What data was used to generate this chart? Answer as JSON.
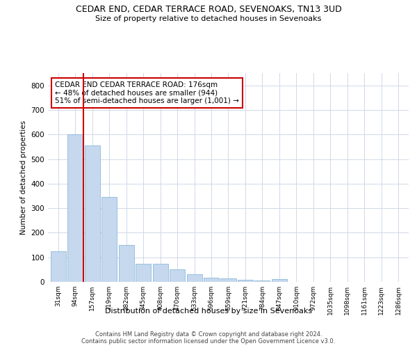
{
  "title": "CEDAR END, CEDAR TERRACE ROAD, SEVENOAKS, TN13 3UD",
  "subtitle": "Size of property relative to detached houses in Sevenoaks",
  "xlabel": "Distribution of detached houses by size in Sevenoaks",
  "ylabel": "Number of detached properties",
  "categories": [
    "31sqm",
    "94sqm",
    "157sqm",
    "219sqm",
    "282sqm",
    "345sqm",
    "408sqm",
    "470sqm",
    "533sqm",
    "596sqm",
    "659sqm",
    "721sqm",
    "784sqm",
    "847sqm",
    "910sqm",
    "972sqm",
    "1035sqm",
    "1098sqm",
    "1161sqm",
    "1223sqm",
    "1286sqm"
  ],
  "values": [
    125,
    600,
    555,
    345,
    150,
    75,
    75,
    50,
    30,
    18,
    13,
    8,
    7,
    10,
    0,
    0,
    0,
    0,
    0,
    0,
    0
  ],
  "bar_color": "#c5d8ee",
  "bar_edgecolor": "#7aafd4",
  "vline_x": 1.5,
  "vline_color": "#cc0000",
  "annotation_line1": "CEDAR END CEDAR TERRACE ROAD: 176sqm",
  "annotation_line2": "← 48% of detached houses are smaller (944)",
  "annotation_line3": "51% of semi-detached houses are larger (1,001) →",
  "annotation_box_color": "white",
  "annotation_box_edgecolor": "#cc0000",
  "ylim": [
    0,
    850
  ],
  "yticks": [
    0,
    100,
    200,
    300,
    400,
    500,
    600,
    700,
    800
  ],
  "footer": "Contains HM Land Registry data © Crown copyright and database right 2024.\nContains public sector information licensed under the Open Government Licence v3.0.",
  "bg_color": "white",
  "grid_color": "#d0d8e8"
}
